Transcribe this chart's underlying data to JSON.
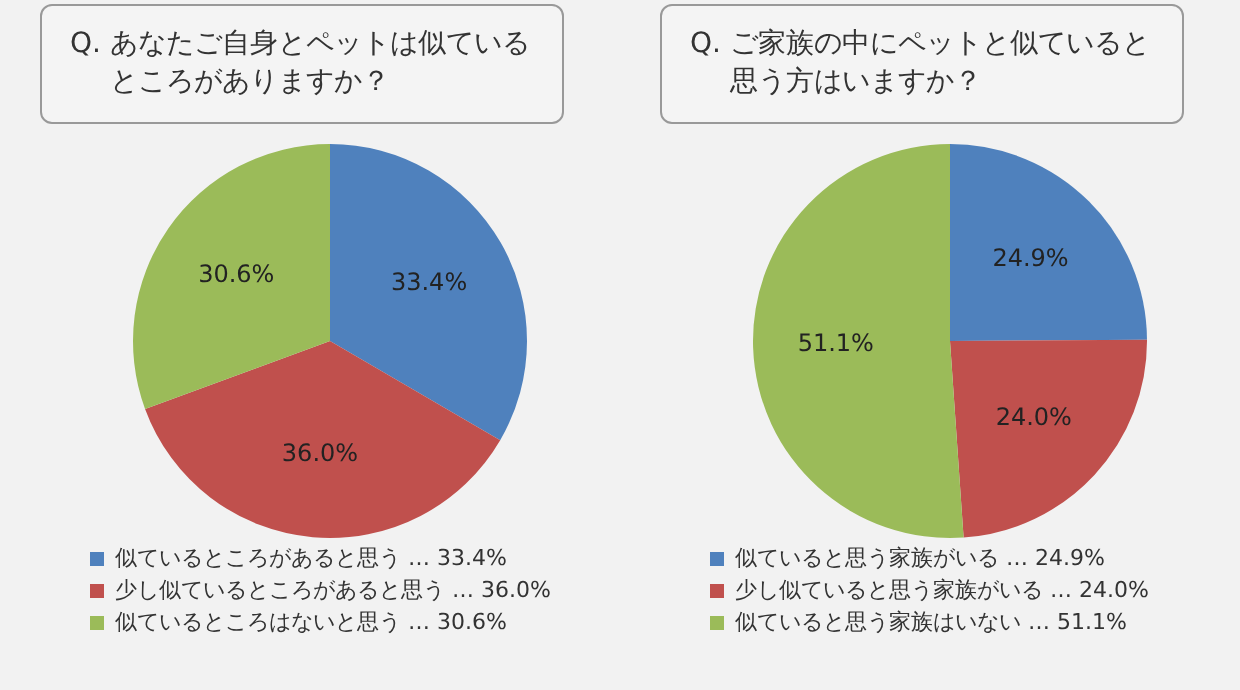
{
  "chart_data": [
    {
      "type": "pie",
      "title": "Q. あなたご自身とペットは似ているところがありますか？",
      "categories": [
        "似ているところがあると思う … 33.4%",
        "少し似ているところがあると思う … 36.0%",
        "似ているところはないと思う … 30.6%"
      ],
      "values": [
        33.4,
        36.0,
        30.6
      ],
      "colors": [
        "#4f81bd",
        "#c0504d",
        "#9bbb59"
      ],
      "value_labels": [
        "33.4%",
        "36.0%",
        "30.6%"
      ],
      "legend": "bottom"
    },
    {
      "type": "pie",
      "title": "Q. ご家族の中にペットと似ていると思う方はいますか？",
      "categories": [
        "似ていると思う家族がいる … 24.9%",
        "少し似ていると思う家族がいる … 24.0%",
        "似ていると思う家族はいない … 51.1%"
      ],
      "values": [
        24.9,
        24.0,
        51.1
      ],
      "colors": [
        "#4f81bd",
        "#c0504d",
        "#9bbb59"
      ],
      "value_labels": [
        "24.9%",
        "24.0%",
        "51.1%"
      ],
      "legend": "bottom"
    }
  ]
}
